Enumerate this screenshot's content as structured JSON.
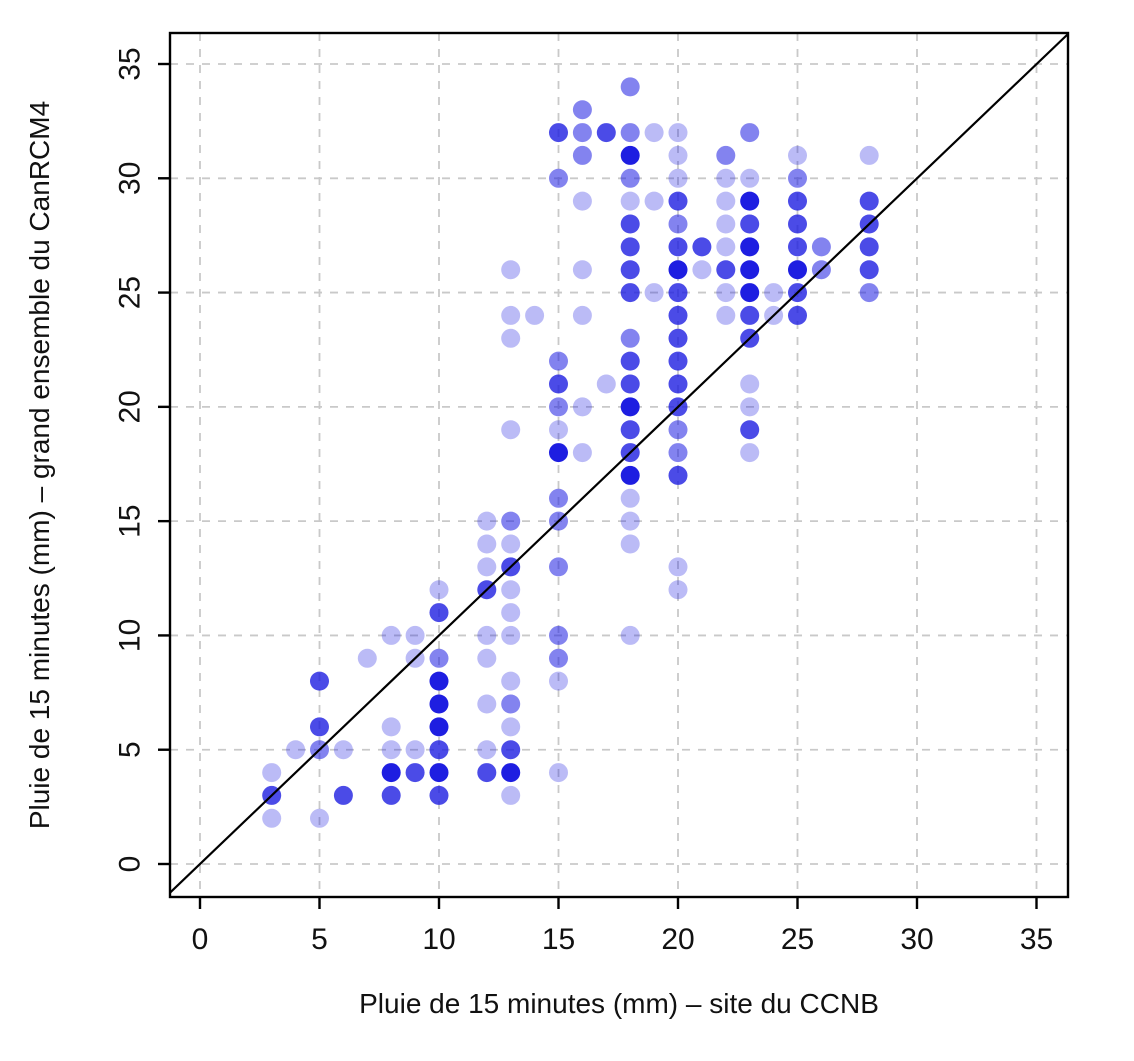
{
  "chart_data": {
    "type": "scatter",
    "title": "",
    "xlabel": "Pluie de 15 minutes (mm) – site du CCNB",
    "ylabel": "Pluie de 15 minutes (mm) – grand ensemble du CanRCM4",
    "xlim": [
      -1.3,
      36.3
    ],
    "ylim": [
      -1.4,
      36.4
    ],
    "xticks": [
      0,
      5,
      10,
      15,
      20,
      25,
      30,
      35
    ],
    "yticks": [
      0,
      5,
      10,
      15,
      20,
      25,
      30,
      35
    ],
    "grid": true,
    "grid_style": "dashed",
    "grid_color": "#c9c9c9",
    "identity_line": true,
    "identity_line_color": "#000000",
    "point_base_color": "#1e1ee1",
    "point_opacities_by_overlap": [
      0.3,
      0.55,
      0.8,
      1.0
    ],
    "points_format": "[x_mm, y_mm, overlap_level]",
    "points": [
      [
        3,
        2,
        1
      ],
      [
        3,
        3,
        3
      ],
      [
        3,
        4,
        1
      ],
      [
        4,
        5,
        1
      ],
      [
        5,
        2,
        1
      ],
      [
        5,
        5,
        2
      ],
      [
        5,
        6,
        3
      ],
      [
        5,
        8,
        3
      ],
      [
        6,
        3,
        3
      ],
      [
        6,
        5,
        1
      ],
      [
        7,
        9,
        1
      ],
      [
        8,
        3,
        3
      ],
      [
        8,
        4,
        4
      ],
      [
        8,
        5,
        1
      ],
      [
        8,
        6,
        1
      ],
      [
        8,
        10,
        1
      ],
      [
        9,
        4,
        3
      ],
      [
        9,
        5,
        1
      ],
      [
        9,
        9,
        1
      ],
      [
        9,
        10,
        1
      ],
      [
        10,
        3,
        3
      ],
      [
        10,
        4,
        4
      ],
      [
        10,
        5,
        3
      ],
      [
        10,
        6,
        4
      ],
      [
        10,
        7,
        4
      ],
      [
        10,
        8,
        4
      ],
      [
        10,
        9,
        2
      ],
      [
        10,
        11,
        3
      ],
      [
        10,
        12,
        1
      ],
      [
        12,
        4,
        3
      ],
      [
        12,
        5,
        1
      ],
      [
        12,
        7,
        1
      ],
      [
        12,
        9,
        1
      ],
      [
        12,
        10,
        1
      ],
      [
        12,
        12,
        3
      ],
      [
        12,
        13,
        1
      ],
      [
        12,
        14,
        1
      ],
      [
        12,
        15,
        1
      ],
      [
        13,
        3,
        1
      ],
      [
        13,
        4,
        4
      ],
      [
        13,
        5,
        3
      ],
      [
        13,
        6,
        1
      ],
      [
        13,
        7,
        2
      ],
      [
        13,
        8,
        1
      ],
      [
        13,
        10,
        1
      ],
      [
        13,
        11,
        1
      ],
      [
        13,
        12,
        1
      ],
      [
        13,
        13,
        3
      ],
      [
        13,
        14,
        1
      ],
      [
        13,
        15,
        2
      ],
      [
        13,
        19,
        1
      ],
      [
        13,
        23,
        1
      ],
      [
        13,
        24,
        1
      ],
      [
        13,
        26,
        1
      ],
      [
        14,
        24,
        1
      ],
      [
        15,
        4,
        1
      ],
      [
        15,
        8,
        1
      ],
      [
        15,
        9,
        2
      ],
      [
        15,
        10,
        2
      ],
      [
        15,
        13,
        2
      ],
      [
        15,
        15,
        2
      ],
      [
        15,
        16,
        2
      ],
      [
        15,
        18,
        4
      ],
      [
        15,
        19,
        1
      ],
      [
        15,
        20,
        2
      ],
      [
        15,
        21,
        3
      ],
      [
        15,
        22,
        2
      ],
      [
        15,
        30,
        2
      ],
      [
        15,
        32,
        3
      ],
      [
        16,
        18,
        1
      ],
      [
        16,
        20,
        1
      ],
      [
        16,
        24,
        1
      ],
      [
        16,
        26,
        1
      ],
      [
        16,
        29,
        1
      ],
      [
        16,
        31,
        2
      ],
      [
        16,
        32,
        2
      ],
      [
        16,
        33,
        2
      ],
      [
        17,
        21,
        1
      ],
      [
        17,
        32,
        3
      ],
      [
        18,
        10,
        1
      ],
      [
        18,
        14,
        1
      ],
      [
        18,
        15,
        1
      ],
      [
        18,
        16,
        1
      ],
      [
        18,
        17,
        4
      ],
      [
        18,
        18,
        3
      ],
      [
        18,
        19,
        3
      ],
      [
        18,
        20,
        4
      ],
      [
        18,
        21,
        3
      ],
      [
        18,
        22,
        3
      ],
      [
        18,
        23,
        2
      ],
      [
        18,
        25,
        3
      ],
      [
        18,
        26,
        3
      ],
      [
        18,
        27,
        3
      ],
      [
        18,
        28,
        3
      ],
      [
        18,
        29,
        1
      ],
      [
        18,
        30,
        2
      ],
      [
        18,
        31,
        4
      ],
      [
        18,
        32,
        2
      ],
      [
        18,
        34,
        2
      ],
      [
        19,
        25,
        1
      ],
      [
        19,
        29,
        1
      ],
      [
        19,
        32,
        1
      ],
      [
        20,
        12,
        1
      ],
      [
        20,
        13,
        1
      ],
      [
        20,
        17,
        3
      ],
      [
        20,
        18,
        2
      ],
      [
        20,
        19,
        2
      ],
      [
        20,
        20,
        3
      ],
      [
        20,
        21,
        3
      ],
      [
        20,
        22,
        3
      ],
      [
        20,
        23,
        3
      ],
      [
        20,
        24,
        3
      ],
      [
        20,
        25,
        3
      ],
      [
        20,
        26,
        4
      ],
      [
        20,
        27,
        3
      ],
      [
        20,
        28,
        2
      ],
      [
        20,
        29,
        3
      ],
      [
        20,
        30,
        1
      ],
      [
        20,
        31,
        1
      ],
      [
        20,
        32,
        1
      ],
      [
        21,
        26,
        1
      ],
      [
        21,
        27,
        3
      ],
      [
        22,
        24,
        1
      ],
      [
        22,
        25,
        1
      ],
      [
        22,
        26,
        3
      ],
      [
        22,
        27,
        1
      ],
      [
        22,
        28,
        1
      ],
      [
        22,
        29,
        1
      ],
      [
        22,
        30,
        1
      ],
      [
        22,
        31,
        2
      ],
      [
        23,
        18,
        1
      ],
      [
        23,
        19,
        3
      ],
      [
        23,
        20,
        1
      ],
      [
        23,
        21,
        1
      ],
      [
        23,
        23,
        3
      ],
      [
        23,
        24,
        3
      ],
      [
        23,
        25,
        4
      ],
      [
        23,
        26,
        4
      ],
      [
        23,
        27,
        4
      ],
      [
        23,
        28,
        3
      ],
      [
        23,
        29,
        4
      ],
      [
        23,
        30,
        1
      ],
      [
        23,
        32,
        2
      ],
      [
        24,
        24,
        1
      ],
      [
        24,
        25,
        1
      ],
      [
        25,
        24,
        3
      ],
      [
        25,
        25,
        3
      ],
      [
        25,
        26,
        4
      ],
      [
        25,
        27,
        3
      ],
      [
        25,
        28,
        3
      ],
      [
        25,
        29,
        3
      ],
      [
        25,
        30,
        2
      ],
      [
        25,
        31,
        1
      ],
      [
        26,
        26,
        2
      ],
      [
        26,
        27,
        2
      ],
      [
        28,
        25,
        2
      ],
      [
        28,
        26,
        3
      ],
      [
        28,
        27,
        3
      ],
      [
        28,
        28,
        3
      ],
      [
        28,
        29,
        3
      ],
      [
        28,
        31,
        1
      ]
    ]
  }
}
